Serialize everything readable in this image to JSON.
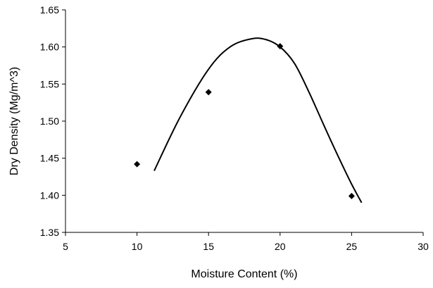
{
  "chart_data": {
    "type": "scatter",
    "xlabel": "Moisture Content (%)",
    "ylabel": "Dry Density (Mg/m^3)",
    "xlim": [
      5,
      30
    ],
    "ylim": [
      1.35,
      1.65
    ],
    "x_ticks": [
      5,
      10,
      15,
      20,
      25,
      30
    ],
    "x_tick_labels": [
      "5",
      "10",
      "15",
      "20",
      "25",
      "30"
    ],
    "y_ticks": [
      1.35,
      1.4,
      1.45,
      1.5,
      1.55,
      1.6,
      1.65
    ],
    "y_tick_labels": [
      "1.35",
      "1.40",
      "1.45",
      "1.50",
      "1.55",
      "1.60",
      "1.65"
    ],
    "grid": false,
    "marker": "diamond",
    "series": [
      {
        "type": "scatter",
        "x": [
          10,
          15,
          20,
          25
        ],
        "y": [
          1.442,
          1.539,
          1.601,
          1.399
        ]
      },
      {
        "type": "line",
        "smooth": true,
        "x": [
          11.2,
          13,
          15,
          16.5,
          18,
          19,
          20,
          21,
          22,
          23,
          24,
          25,
          25.7
        ],
        "y": [
          1.433,
          1.505,
          1.57,
          1.6,
          1.611,
          1.61,
          1.6,
          1.578,
          1.54,
          1.497,
          1.455,
          1.415,
          1.39
        ]
      }
    ]
  }
}
